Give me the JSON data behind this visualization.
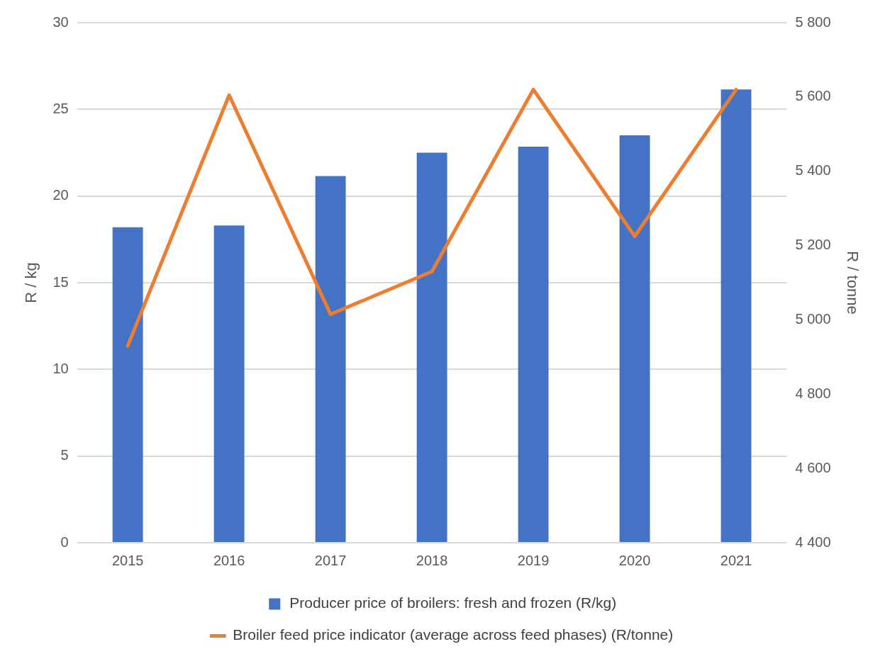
{
  "chart_data": {
    "type": "bar",
    "categories": [
      "2015",
      "2016",
      "2017",
      "2018",
      "2019",
      "2020",
      "2021"
    ],
    "series": [
      {
        "name": "Producer price of broilers: fresh and frozen (R/kg)",
        "color": "#4472c4",
        "values": [
          18.2,
          18.3,
          21.15,
          22.5,
          22.85,
          23.5,
          26.15
        ]
      },
      {
        "name": "Broiler feed price indicator (average across feed phases) (R/tonne)",
        "type": "line",
        "axis": "y2",
        "color": "#ed7d31",
        "values": [
          4930,
          5605,
          5015,
          5130,
          5620,
          5225,
          5620
        ]
      }
    ],
    "ylabel": "R / kg",
    "y2label": "R / tonne",
    "ylim": [
      0,
      30
    ],
    "yticks": [
      0,
      5,
      10,
      15,
      20,
      25,
      30
    ],
    "y2lim": [
      4400,
      5800
    ],
    "y2ticks": [
      {
        "value": 4400,
        "label": "4 400"
      },
      {
        "value": 4600,
        "label": "4 600"
      },
      {
        "value": 4800,
        "label": "4 800"
      },
      {
        "value": 5000,
        "label": "5 000"
      },
      {
        "value": 5200,
        "label": "5 200"
      },
      {
        "value": 5400,
        "label": "5 400"
      },
      {
        "value": 5600,
        "label": "5 600"
      },
      {
        "value": 5800,
        "label": "5 800"
      }
    ],
    "grid": "y",
    "legend": "bottom",
    "marker": "none",
    "line_style": "solid"
  }
}
